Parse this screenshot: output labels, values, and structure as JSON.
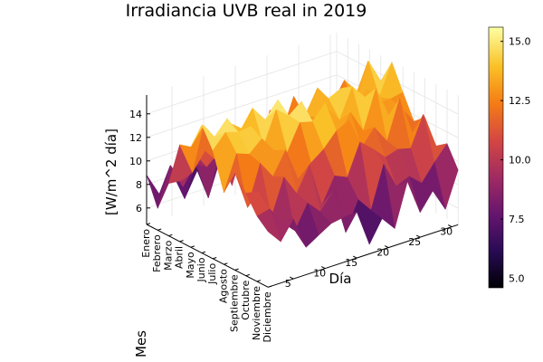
{
  "chart_data": {
    "type": "surface",
    "title": "Irradiancia UVB real in 2019",
    "xlabel": "Día",
    "ylabel": "Mes",
    "zlabel": "[W/m^2 día]",
    "x_ticks": [
      5,
      10,
      15,
      20,
      25,
      30
    ],
    "x_range": [
      1,
      31
    ],
    "months": [
      "Enero",
      "Febrero",
      "Marzo",
      "Abril",
      "Mayo",
      "Junio",
      "Julio",
      "Agosto",
      "Septiembre",
      "Octubre",
      "Noviembre",
      "Diciembre"
    ],
    "z_ticks": [
      6,
      8,
      10,
      12,
      14
    ],
    "z_range": [
      4.6,
      15.6
    ],
    "colormap": "inferno",
    "colorbar": {
      "ticks": [
        5.0,
        7.5,
        10.0,
        12.5,
        15.0
      ],
      "tick_labels": [
        "5.0",
        "7.5",
        "10.0",
        "12.5",
        "15.0"
      ],
      "range": [
        4.6,
        15.6
      ]
    },
    "monthly_mean_irradiance": [
      7.5,
      8.5,
      10.0,
      11.5,
      13.0,
      14.0,
      14.3,
      13.5,
      12.3,
      11.0,
      9.0,
      7.7
    ],
    "daily_variation_amplitude": 2.2,
    "grid": true
  }
}
